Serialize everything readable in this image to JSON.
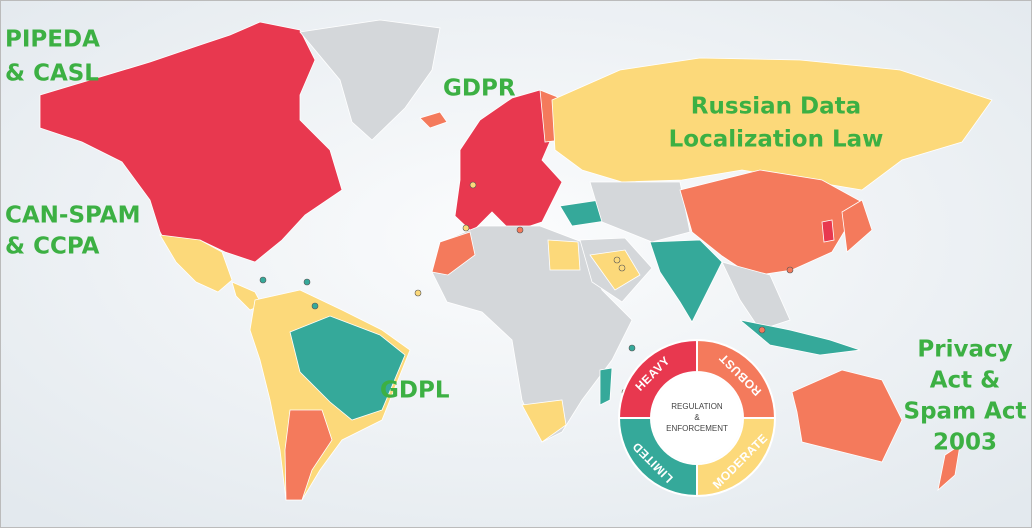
{
  "annotations": [
    {
      "lines": [
        "PIPEDA",
        "& CASL"
      ]
    },
    {
      "lines": [
        "CAN-SPAM",
        "& CCPA"
      ]
    },
    {
      "lines": [
        "GDPR"
      ]
    },
    {
      "lines": [
        "Russian Data",
        "Localization Law"
      ]
    },
    {
      "lines": [
        "GDPL"
      ]
    },
    {
      "lines": [
        "Privacy",
        "Act &",
        "Spam Act",
        "2003"
      ]
    }
  ],
  "legend": {
    "center": [
      "REGULATION",
      "&",
      "ENFORCEMENT"
    ],
    "categories": [
      {
        "label": "HEAVY",
        "color": "#e8384f"
      },
      {
        "label": "ROBUST",
        "color": "#f47a5c"
      },
      {
        "label": "MODERATE",
        "color": "#fcd97a"
      },
      {
        "label": "LIMITED",
        "color": "#35a99a"
      }
    ]
  }
}
